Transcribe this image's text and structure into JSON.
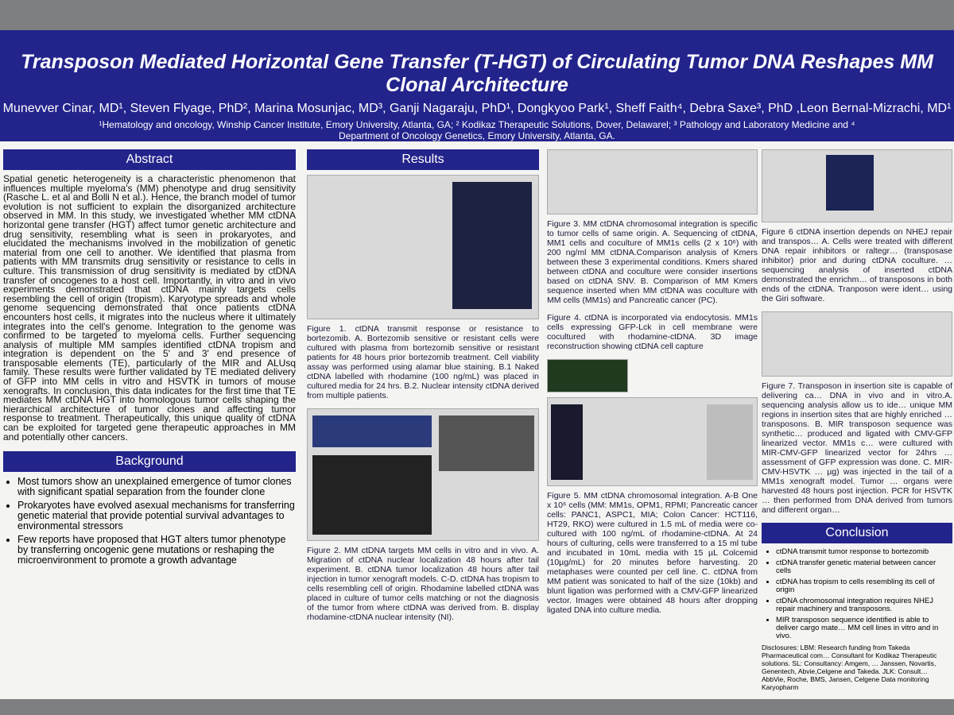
{
  "header": {
    "title": "Transposon Mediated Horizontal Gene Transfer (T-HGT) of Circulating Tumor DNA Reshapes MM Clonal Architecture",
    "authors": "Munevver Cinar, MD¹, Steven Flyage, PhD², Marina Mosunjac, MD³, Ganji Nagaraju, PhD¹, Dongkyoo Park¹, Sheff Faith⁴, Debra Saxe³, PhD ,Leon Bernal-Mizrachi, MD¹",
    "affiliations": "¹Hematology and oncology, Winship Cancer Institute, Emory University, Atlanta, GA; ² Kodikaz Therapeutic Solutions, Dover, Delawarel; ³ Pathology and Laboratory Medicine and ⁴ Department of Oncology Genetics, Emory University, Atlanta, GA."
  },
  "abstract": {
    "heading": "Abstract",
    "text": "Spatial genetic heterogeneity is a characteristic phenomenon that influences multiple myeloma's (MM) phenotype and drug sensitivity (Rasche L. et al and Bolli N et al.). Hence, the branch model of tumor evolution is not sufficient to explain the disorganized architecture observed in MM. In this study, we investigated whether MM ctDNA horizontal gene transfer (HGT) affect tumor genetic architecture and drug sensitivity, resembling what is seen in prokaryotes, and elucidated the mechanisms involved in the mobilization of genetic material from one cell to another. We identified that plasma from patients with MM transmits drug sensitivity or resistance to cells in culture. This transmission of drug sensitivity is mediated by ctDNA transfer of oncogenes to a host cell. Importantly, in vitro and in vivo experiments demonstrated that ctDNA mainly targets cells resembling the cell of origin (tropism). Karyotype spreads and whole genome sequencing demonstrated that once patients ctDNA encounters host cells, it migrates into the nucleus where it ultimately integrates into the cell's genome. Integration to the genome was confirmed to be targeted to myeloma cells. Further sequencing analysis of multiple MM samples identified ctDNA tropism and integration is dependent on the 5' and 3' end presence of transposable elements (TE), particularly of the MIR and ALUsq family. These results were further validated by TE mediated delivery of GFP into MM cells in vitro and HSVTK in tumors of mouse xenografts. In conclusion, this data indicates for the first time that TE mediates MM ctDNA HGT into homologous tumor cells shaping the hierarchical architecture of tumor clones and affecting tumor response to treatment. Therapeutically, this unique quality of ctDNA can be exploited for targeted gene therapeutic approaches in MM and potentially other cancers."
  },
  "background": {
    "heading": "Background",
    "bullets": [
      "Most tumors show an unexplained emergence of tumor clones with significant spatial separation from the founder clone",
      "Prokaryotes have evolved asexual mechanisms for transferring genetic material that provide potential survival advantages to environmental stressors",
      "Few reports have proposed that HGT alters tumor phenotype by transferring oncogenic gene mutations or reshaping the microenvironment to promote a growth advantage"
    ]
  },
  "results": {
    "heading": "Results",
    "figures": [
      "Figure 1. ctDNA transmit response or resistance to bortezomib. A. Bortezomib sensitive or resistant cells were cultured with plasma from bortezomib sensitive or resistant patients for 48 hours prior bortezomib treatment. Cell viability assay was performed using alamar blue staining. B.1 Naked ctDNA labelled with rhodamine (100 ng/mL) was placed in cultured media for 24 hrs. B.2. Nuclear intensity ctDNA derived from multiple patients.",
      "Figure 2. MM ctDNA targets MM cells in vitro and in vivo. A. Migration of ctDNA nuclear localization 48 hours after tail experiment. B. ctDNA tumor localization 48 hours after tail injection in tumor xenograft models. C-D. ctDNA has tropism to cells resembling cell of origin. Rhodamine labelled ctDNA was placed in culture of tumor cells matching or not the diagnosis of the tumor from where ctDNA was derived from. B. display rhodamine-ctDNA nuclear intensity (NI).",
      "Figure 3. MM ctDNA chromosomal integration is specific to tumor cells of same origin. A. Sequencing of ctDNA, MM1 cells and coculture of MM1s cells (2 x 10⁶) with 200 ng/ml MM ctDNA.Comparison analysis of Kmers between these 3 experimental conditions. Kmers shared between ctDNA and coculture were consider insertions based on ctDNA SNV. B. Comparison of MM Kmers sequence inserted when MM ctDNA was coculture with MM cells (MM1s) and Pancreatic cancer (PC).",
      "Figure 4. ctDNA is incorporated via endocytosis. MM1s cells expressing GFP-Lck in cell membrane were cocultured with rhodamine-ctDNA. 3D image reconstruction showing ctDNA cell capture",
      "Figure 5. MM ctDNA chromosomal integration. A-B One x 10⁶ cells (MM: MM1s, OPM1, RPMI; Pancreatic cancer cells: PANC1, ASPC1, MIA; Colon Cancer: HCT116, HT29, RKO) were cultured in 1.5 mL of media were co-cultured with 100 ng/mL of rhodamine-ctDNA. At 24 hours of culturing, cells were transferred to a 15 ml tube and incubated in 10mL media with 15 µL Colcemid (10µg/mL) for 20 minutes before harvesting. 20 metaphases were counted per cell line. C. ctDNA from MM patient was sonicated to half of the size (10kb) and blunt ligation was performed with a CMV-GFP linearized vector. Images were obtained 48 hours after dropping ligated DNA into culture media.",
      "Figure 6 ctDNA insertion depends on NHEJ repair and transpos… A. Cells were treated with different DNA repair inhibitors or raltegr… (transposase inhibitor) prior and during ctDNA coculture. … sequencing analysis of inserted ctDNA demonstrated the enrichm… of transposons in both ends of the ctDNA. Tranposon were ident… using the Giri software.",
      "Figure 7. Transposon in insertion site is capable of delivering ca… DNA in vivo and in vitro.A. sequencing analysis allow us to ide… unique MM regions in insertion sites that are highly enriched … transposons. B. MIR transposon sequence was synthetic… produced and ligated with CMV-GFP linearized vector. MM1s c… were cultured with MIR-CMV-GFP linearized vector for 24hrs … assessment of GFP expression was done. C. MIR-CMV-HSVTK … µg) was injected in the tail of a MM1s xenograft model. Tumor … organs were harvested 48 hours post injection. PCR for HSVTK … then performed from DNA derived from tumors and different organ…"
    ]
  },
  "conclusion": {
    "heading": "Conclusion",
    "bullets": [
      "ctDNA transmit tumor response to bortezomib",
      "ctDNA transfer genetic material between cancer cells",
      "ctDNA has tropism to cells resembling its cell of origin",
      "ctDNA chromosomal integration requires NHEJ repair machinery and transposons.",
      "MIR transposon sequence identified is able to deliver cargo mate… MM cell lines in vitro and in vivo."
    ],
    "disclosures": "Disclosures: LBM: Research funding from Takeda Pharmaceutical com… Consultant for Kodikaz Therapeutic solutions. SL: Consultancy: Amgem, … Janssen, Novartis, Genentech, Abvie,Celgene and Takeda. JLK: Consult… AbbVie, Roche, BMS, Jansen, Celgene Data monitoring Karyopharm"
  }
}
